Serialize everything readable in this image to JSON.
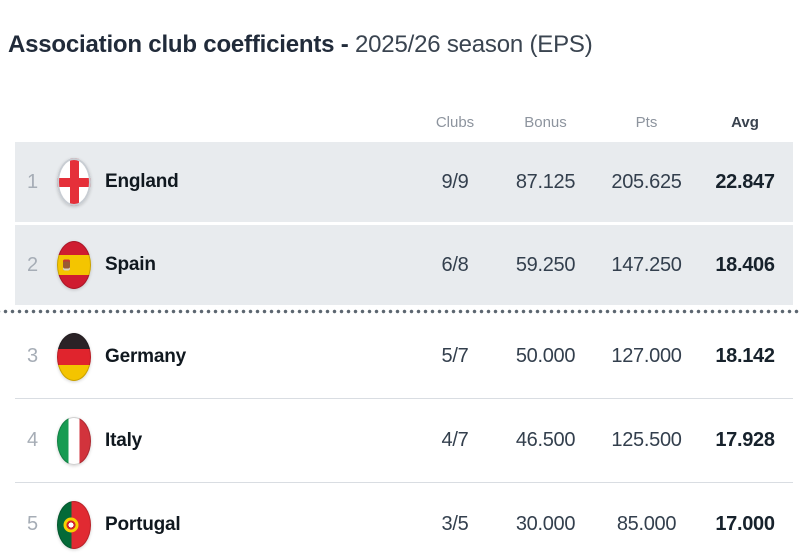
{
  "title": {
    "main": "Association club coefficients -",
    "season": "2025/26 season (EPS)"
  },
  "table": {
    "columns": [
      "Clubs",
      "Bonus",
      "Pts",
      "Avg"
    ],
    "cutoff_after_rank": 2,
    "rows": [
      {
        "rank": "1",
        "country": "England",
        "flag": "england",
        "clubs": "9/9",
        "bonus": "87.125",
        "pts": "205.625",
        "avg": "22.847",
        "highlight": true
      },
      {
        "rank": "2",
        "country": "Spain",
        "flag": "spain",
        "clubs": "6/8",
        "bonus": "59.250",
        "pts": "147.250",
        "avg": "18.406",
        "highlight": true
      },
      {
        "rank": "3",
        "country": "Germany",
        "flag": "germany",
        "clubs": "5/7",
        "bonus": "50.000",
        "pts": "127.000",
        "avg": "18.142",
        "highlight": false
      },
      {
        "rank": "4",
        "country": "Italy",
        "flag": "italy",
        "clubs": "4/7",
        "bonus": "46.500",
        "pts": "125.500",
        "avg": "17.928",
        "highlight": false
      },
      {
        "rank": "5",
        "country": "Portugal",
        "flag": "portugal",
        "clubs": "3/5",
        "bonus": "30.000",
        "pts": "85.000",
        "avg": "17.000",
        "highlight": false
      }
    ]
  },
  "colors": {
    "highlight_row_bg": "#e8ebee",
    "row_separator": "#d9dde2",
    "header_label": "#8d949e",
    "rank_text": "#a6adb6",
    "value_text": "#333f4d",
    "avg_text": "#17222c",
    "cutoff_dots": "#5c6670"
  }
}
